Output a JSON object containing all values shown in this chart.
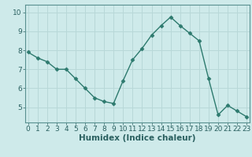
{
  "title": "",
  "xlabel": "Humidex (Indice chaleur)",
  "ylabel": "",
  "x": [
    0,
    1,
    2,
    3,
    4,
    5,
    6,
    7,
    8,
    9,
    10,
    11,
    12,
    13,
    14,
    15,
    16,
    17,
    18,
    19,
    20,
    21,
    22,
    23
  ],
  "y": [
    7.9,
    7.6,
    7.4,
    7.0,
    7.0,
    6.5,
    6.0,
    5.5,
    5.3,
    5.2,
    6.4,
    7.5,
    8.1,
    8.8,
    9.3,
    9.75,
    9.3,
    8.9,
    8.5,
    6.5,
    4.6,
    5.1,
    4.8,
    4.5
  ],
  "line_color": "#2d7a6e",
  "marker": "D",
  "marker_size": 2.5,
  "line_width": 1.0,
  "bg_color": "#ceeaea",
  "grid_color": "#b8d8d8",
  "axis_bg": "#ceeaea",
  "tick_color": "#2a6060",
  "xlabel_color": "#2a6060",
  "ylim": [
    4.2,
    10.4
  ],
  "yticks": [
    5,
    6,
    7,
    8,
    9,
    10
  ],
  "xlim": [
    -0.3,
    23.3
  ],
  "xticks": [
    0,
    1,
    2,
    3,
    4,
    5,
    6,
    7,
    8,
    9,
    10,
    11,
    12,
    13,
    14,
    15,
    16,
    17,
    18,
    19,
    20,
    21,
    22,
    23
  ],
  "xlabel_fontsize": 7.5,
  "tick_fontsize": 6.5
}
